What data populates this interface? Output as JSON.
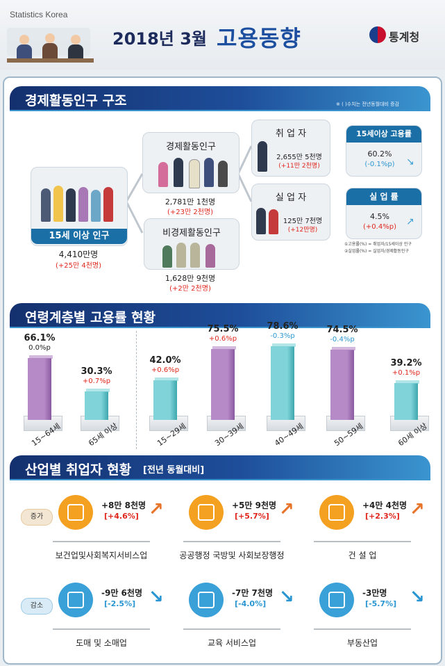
{
  "header": {
    "org_en": "Statistics Korea",
    "title_period": "2018년 3월",
    "title_main": "고용동향",
    "logo_text": "통계청"
  },
  "section1": {
    "title": "경제활동인구 구조",
    "note": "※ ( )수치는 전년동월대비 증감",
    "pop15": {
      "label": "15세 이상 인구",
      "value": "4,410만명",
      "change": "(+25만 4천명)"
    },
    "active": {
      "label": "경제활동인구",
      "value": "2,781만 1천명",
      "change": "(+23만 2천명)"
    },
    "inactive": {
      "label": "비경제활동인구",
      "value": "1,628만 9천명",
      "change": "(+2만 2천명)"
    },
    "employed": {
      "label": "취 업 자",
      "value": "2,655만 5천명",
      "change": "(+11만 2천명)"
    },
    "unemployed": {
      "label": "실 업 자",
      "value": "125만 7천명",
      "change": "(+12만명)"
    },
    "emp_rate": {
      "label": "15세이상 고용률",
      "value": "60.2%",
      "change": "(-0.1%p)"
    },
    "unemp_rate": {
      "label": "실 업 률",
      "value": "4.5%",
      "change": "(+0.4%p)"
    },
    "footnote1": "①고용률(%) = 취업자/15세이상 인구",
    "footnote2": "②실업률(%) = 실업자/경제활동인구"
  },
  "section2": {
    "title": "연령계층별 고용률 현황"
  },
  "chart_data": {
    "type": "bar",
    "categories": [
      "15~64세",
      "65세 이상",
      "15~29세",
      "30~39세",
      "40~49세",
      "50~59세",
      "60세 이상"
    ],
    "values": [
      66.1,
      30.3,
      42.0,
      75.5,
      78.6,
      74.5,
      39.2
    ],
    "value_labels": [
      "66.1%",
      "30.3%",
      "42.0%",
      "75.5%",
      "78.6%",
      "74.5%",
      "39.2%"
    ],
    "change_labels": [
      "0.0%p",
      "+0.7%p",
      "+0.6%p",
      "+0.6%p",
      "-0.3%p",
      "-0.4%p",
      "+0.1%p"
    ],
    "changes": [
      0.0,
      0.7,
      0.6,
      0.6,
      -0.3,
      -0.4,
      0.1
    ],
    "bar_colors": [
      "purple",
      "teal",
      "teal",
      "purple",
      "teal",
      "purple",
      "teal"
    ],
    "change_colors": {
      "zero": "#222222",
      "up": "#e0261c",
      "down": "#2a96d1"
    },
    "colors": {
      "purple_front": "#b68ac6",
      "purple_side": "#8a5aa0",
      "teal_front": "#7fd3d9",
      "teal_side": "#3ea7ae"
    }
  },
  "section3": {
    "title": "산업별 취업자 현황",
    "subtitle": "[전년 동월대비]",
    "increase_tag": "증가",
    "decrease_tag": "감소",
    "increase": [
      {
        "name": "보건업및사회복지서비스업",
        "value": "+8만 8천명",
        "pct": "[+4.6%]",
        "icon": "healthcare-icon"
      },
      {
        "name": "공공행정 국방및 사회보장행정",
        "value": "+5만 9천명",
        "pct": "[+5.7%]",
        "icon": "public-admin-icon"
      },
      {
        "name": "건 설 업",
        "value": "+4만 4천명",
        "pct": "[+2.3%]",
        "icon": "crane-icon"
      }
    ],
    "decrease": [
      {
        "name": "도매 및 소매업",
        "value": "-9만 6천명",
        "pct": "[-2.5%]",
        "icon": "sale-tag-icon"
      },
      {
        "name": "교육 서비스업",
        "value": "-7만 7천명",
        "pct": "[-4.0%]",
        "icon": "clipboard-icon"
      },
      {
        "name": "부동산업",
        "value": "-3만명",
        "pct": "[-5.7%]",
        "icon": "house-percent-icon"
      }
    ],
    "colors": {
      "increase": "#f4a020",
      "decrease": "#3aa0d8",
      "increase_text": "#e0261c",
      "decrease_text": "#2a96d1"
    }
  }
}
